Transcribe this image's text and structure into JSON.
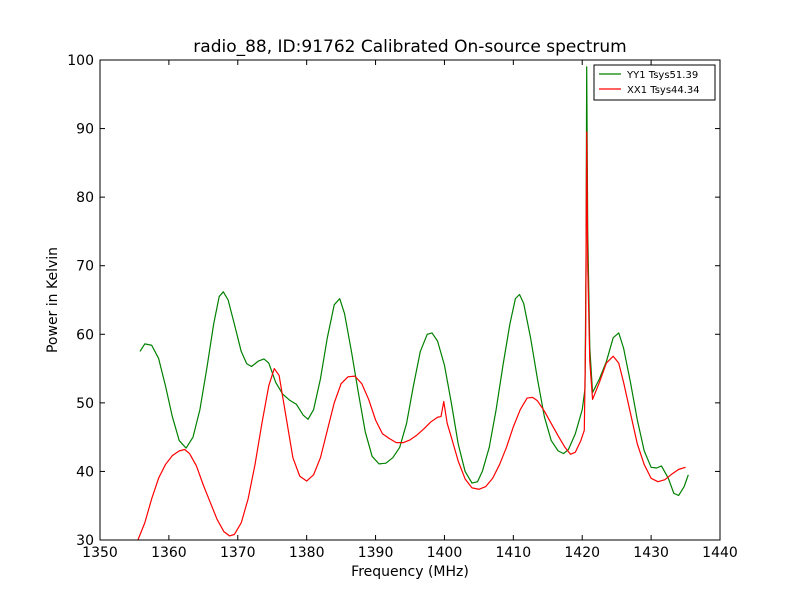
{
  "chart_data": {
    "type": "line",
    "title": "radio_88, ID:91762 Calibrated On-source spectrum",
    "xlabel": "Frequency (MHz)",
    "ylabel": "Power in Kelvin",
    "xlim": [
      1350,
      1440
    ],
    "ylim": [
      30,
      100
    ],
    "xticks": [
      "1350",
      "1360",
      "1370",
      "1380",
      "1390",
      "1400",
      "1410",
      "1420",
      "1430",
      "1440"
    ],
    "yticks": [
      "30",
      "40",
      "50",
      "60",
      "70",
      "80",
      "90",
      "100"
    ],
    "grid": false,
    "legend_position": "top-right",
    "series": [
      {
        "name": "YY1 Tsys51.39",
        "color": "#008000",
        "points": [
          [
            1355.8,
            57.5
          ],
          [
            1356.5,
            58.6
          ],
          [
            1357.5,
            58.4
          ],
          [
            1358.5,
            56.5
          ],
          [
            1359.5,
            52.5
          ],
          [
            1360.5,
            48.0
          ],
          [
            1361.5,
            44.5
          ],
          [
            1362.5,
            43.4
          ],
          [
            1363.5,
            45.0
          ],
          [
            1364.5,
            49.0
          ],
          [
            1365.5,
            55.0
          ],
          [
            1366.5,
            61.5
          ],
          [
            1367.3,
            65.5
          ],
          [
            1367.9,
            66.2
          ],
          [
            1368.6,
            65.0
          ],
          [
            1369.5,
            61.5
          ],
          [
            1370.5,
            57.5
          ],
          [
            1371.3,
            55.7
          ],
          [
            1372.0,
            55.3
          ],
          [
            1373.0,
            56.1
          ],
          [
            1373.8,
            56.4
          ],
          [
            1374.5,
            55.8
          ],
          [
            1375.5,
            53.0
          ],
          [
            1376.5,
            51.3
          ],
          [
            1377.5,
            50.4
          ],
          [
            1378.5,
            49.8
          ],
          [
            1379.5,
            48.2
          ],
          [
            1380.2,
            47.6
          ],
          [
            1381.0,
            49.0
          ],
          [
            1382.0,
            53.5
          ],
          [
            1383.0,
            59.5
          ],
          [
            1384.0,
            64.3
          ],
          [
            1384.8,
            65.2
          ],
          [
            1385.5,
            63.0
          ],
          [
            1386.5,
            57.5
          ],
          [
            1387.5,
            51.5
          ],
          [
            1388.5,
            45.8
          ],
          [
            1389.5,
            42.2
          ],
          [
            1390.5,
            41.1
          ],
          [
            1391.5,
            41.2
          ],
          [
            1392.5,
            42.0
          ],
          [
            1393.5,
            43.5
          ],
          [
            1394.5,
            47.0
          ],
          [
            1395.5,
            52.5
          ],
          [
            1396.5,
            57.5
          ],
          [
            1397.5,
            60.0
          ],
          [
            1398.2,
            60.2
          ],
          [
            1399.0,
            59.0
          ],
          [
            1400.0,
            55.5
          ],
          [
            1401.0,
            50.0
          ],
          [
            1402.0,
            44.0
          ],
          [
            1403.0,
            40.0
          ],
          [
            1404.0,
            38.3
          ],
          [
            1404.8,
            38.5
          ],
          [
            1405.5,
            40.0
          ],
          [
            1406.5,
            43.5
          ],
          [
            1407.5,
            49.0
          ],
          [
            1408.5,
            55.5
          ],
          [
            1409.5,
            61.5
          ],
          [
            1410.3,
            65.2
          ],
          [
            1410.9,
            65.8
          ],
          [
            1411.5,
            64.5
          ],
          [
            1412.5,
            59.5
          ],
          [
            1413.5,
            53.5
          ],
          [
            1414.5,
            48.0
          ],
          [
            1415.5,
            44.5
          ],
          [
            1416.5,
            43.0
          ],
          [
            1417.3,
            42.6
          ],
          [
            1418.0,
            43.2
          ],
          [
            1419.0,
            45.5
          ],
          [
            1420.0,
            49.0
          ],
          [
            1420.4,
            52.0
          ],
          [
            1420.55,
            70.0
          ],
          [
            1420.65,
            99.0
          ],
          [
            1420.8,
            75.0
          ],
          [
            1421.1,
            58.0
          ],
          [
            1421.5,
            51.5
          ],
          [
            1422.5,
            53.5
          ],
          [
            1423.5,
            56.0
          ],
          [
            1424.5,
            59.5
          ],
          [
            1425.3,
            60.2
          ],
          [
            1426.0,
            58.0
          ],
          [
            1427.0,
            53.0
          ],
          [
            1428.0,
            47.5
          ],
          [
            1429.0,
            43.0
          ],
          [
            1430.0,
            40.6
          ],
          [
            1430.8,
            40.5
          ],
          [
            1431.5,
            40.8
          ],
          [
            1432.5,
            39.0
          ],
          [
            1433.3,
            36.8
          ],
          [
            1434.0,
            36.5
          ],
          [
            1434.8,
            37.8
          ],
          [
            1435.4,
            39.5
          ]
        ]
      },
      {
        "name": "XX1 Tsys44.34",
        "color": "#ff0000",
        "points": [
          [
            1355.5,
            30.0
          ],
          [
            1356.5,
            32.5
          ],
          [
            1357.5,
            36.0
          ],
          [
            1358.5,
            39.0
          ],
          [
            1359.5,
            41.0
          ],
          [
            1360.5,
            42.3
          ],
          [
            1361.5,
            43.0
          ],
          [
            1362.3,
            43.2
          ],
          [
            1363.0,
            42.6
          ],
          [
            1364.0,
            40.8
          ],
          [
            1365.0,
            38.0
          ],
          [
            1366.0,
            35.5
          ],
          [
            1367.0,
            33.0
          ],
          [
            1368.0,
            31.2
          ],
          [
            1368.8,
            30.6
          ],
          [
            1369.5,
            30.8
          ],
          [
            1370.5,
            32.5
          ],
          [
            1371.5,
            36.0
          ],
          [
            1372.5,
            41.0
          ],
          [
            1373.5,
            47.0
          ],
          [
            1374.5,
            52.5
          ],
          [
            1375.3,
            55.0
          ],
          [
            1376.0,
            54.0
          ],
          [
            1377.0,
            48.0
          ],
          [
            1378.0,
            42.0
          ],
          [
            1379.0,
            39.3
          ],
          [
            1380.0,
            38.6
          ],
          [
            1381.0,
            39.5
          ],
          [
            1382.0,
            42.0
          ],
          [
            1383.0,
            46.0
          ],
          [
            1384.0,
            50.0
          ],
          [
            1385.0,
            52.8
          ],
          [
            1386.0,
            53.8
          ],
          [
            1387.0,
            53.9
          ],
          [
            1388.0,
            52.8
          ],
          [
            1389.0,
            50.5
          ],
          [
            1390.0,
            47.5
          ],
          [
            1391.0,
            45.5
          ],
          [
            1392.0,
            44.8
          ],
          [
            1393.0,
            44.2
          ],
          [
            1394.0,
            44.2
          ],
          [
            1395.0,
            44.6
          ],
          [
            1396.0,
            45.3
          ],
          [
            1397.0,
            46.2
          ],
          [
            1398.0,
            47.2
          ],
          [
            1399.0,
            47.9
          ],
          [
            1399.5,
            48.0
          ],
          [
            1399.9,
            50.2
          ],
          [
            1400.4,
            47.0
          ],
          [
            1401.0,
            45.0
          ],
          [
            1402.0,
            41.5
          ],
          [
            1403.0,
            38.9
          ],
          [
            1404.0,
            37.6
          ],
          [
            1405.0,
            37.4
          ],
          [
            1406.0,
            37.8
          ],
          [
            1407.0,
            39.0
          ],
          [
            1408.0,
            41.0
          ],
          [
            1409.0,
            43.5
          ],
          [
            1410.0,
            46.5
          ],
          [
            1411.0,
            49.0
          ],
          [
            1412.0,
            50.7
          ],
          [
            1412.8,
            50.8
          ],
          [
            1413.5,
            50.3
          ],
          [
            1414.5,
            48.8
          ],
          [
            1415.5,
            47.0
          ],
          [
            1416.5,
            45.2
          ],
          [
            1417.5,
            43.5
          ],
          [
            1418.3,
            42.5
          ],
          [
            1419.0,
            42.8
          ],
          [
            1419.8,
            44.5
          ],
          [
            1420.3,
            46.0
          ],
          [
            1420.5,
            60.0
          ],
          [
            1420.65,
            89.5
          ],
          [
            1420.8,
            70.0
          ],
          [
            1421.1,
            56.0
          ],
          [
            1421.5,
            50.5
          ],
          [
            1422.5,
            53.0
          ],
          [
            1423.5,
            55.8
          ],
          [
            1424.5,
            56.8
          ],
          [
            1425.3,
            55.8
          ],
          [
            1426.0,
            53.0
          ],
          [
            1427.0,
            48.5
          ],
          [
            1428.0,
            44.0
          ],
          [
            1429.0,
            41.0
          ],
          [
            1430.0,
            39.0
          ],
          [
            1431.0,
            38.5
          ],
          [
            1432.0,
            38.8
          ],
          [
            1433.0,
            39.6
          ],
          [
            1434.0,
            40.3
          ],
          [
            1435.0,
            40.6
          ]
        ]
      }
    ]
  }
}
